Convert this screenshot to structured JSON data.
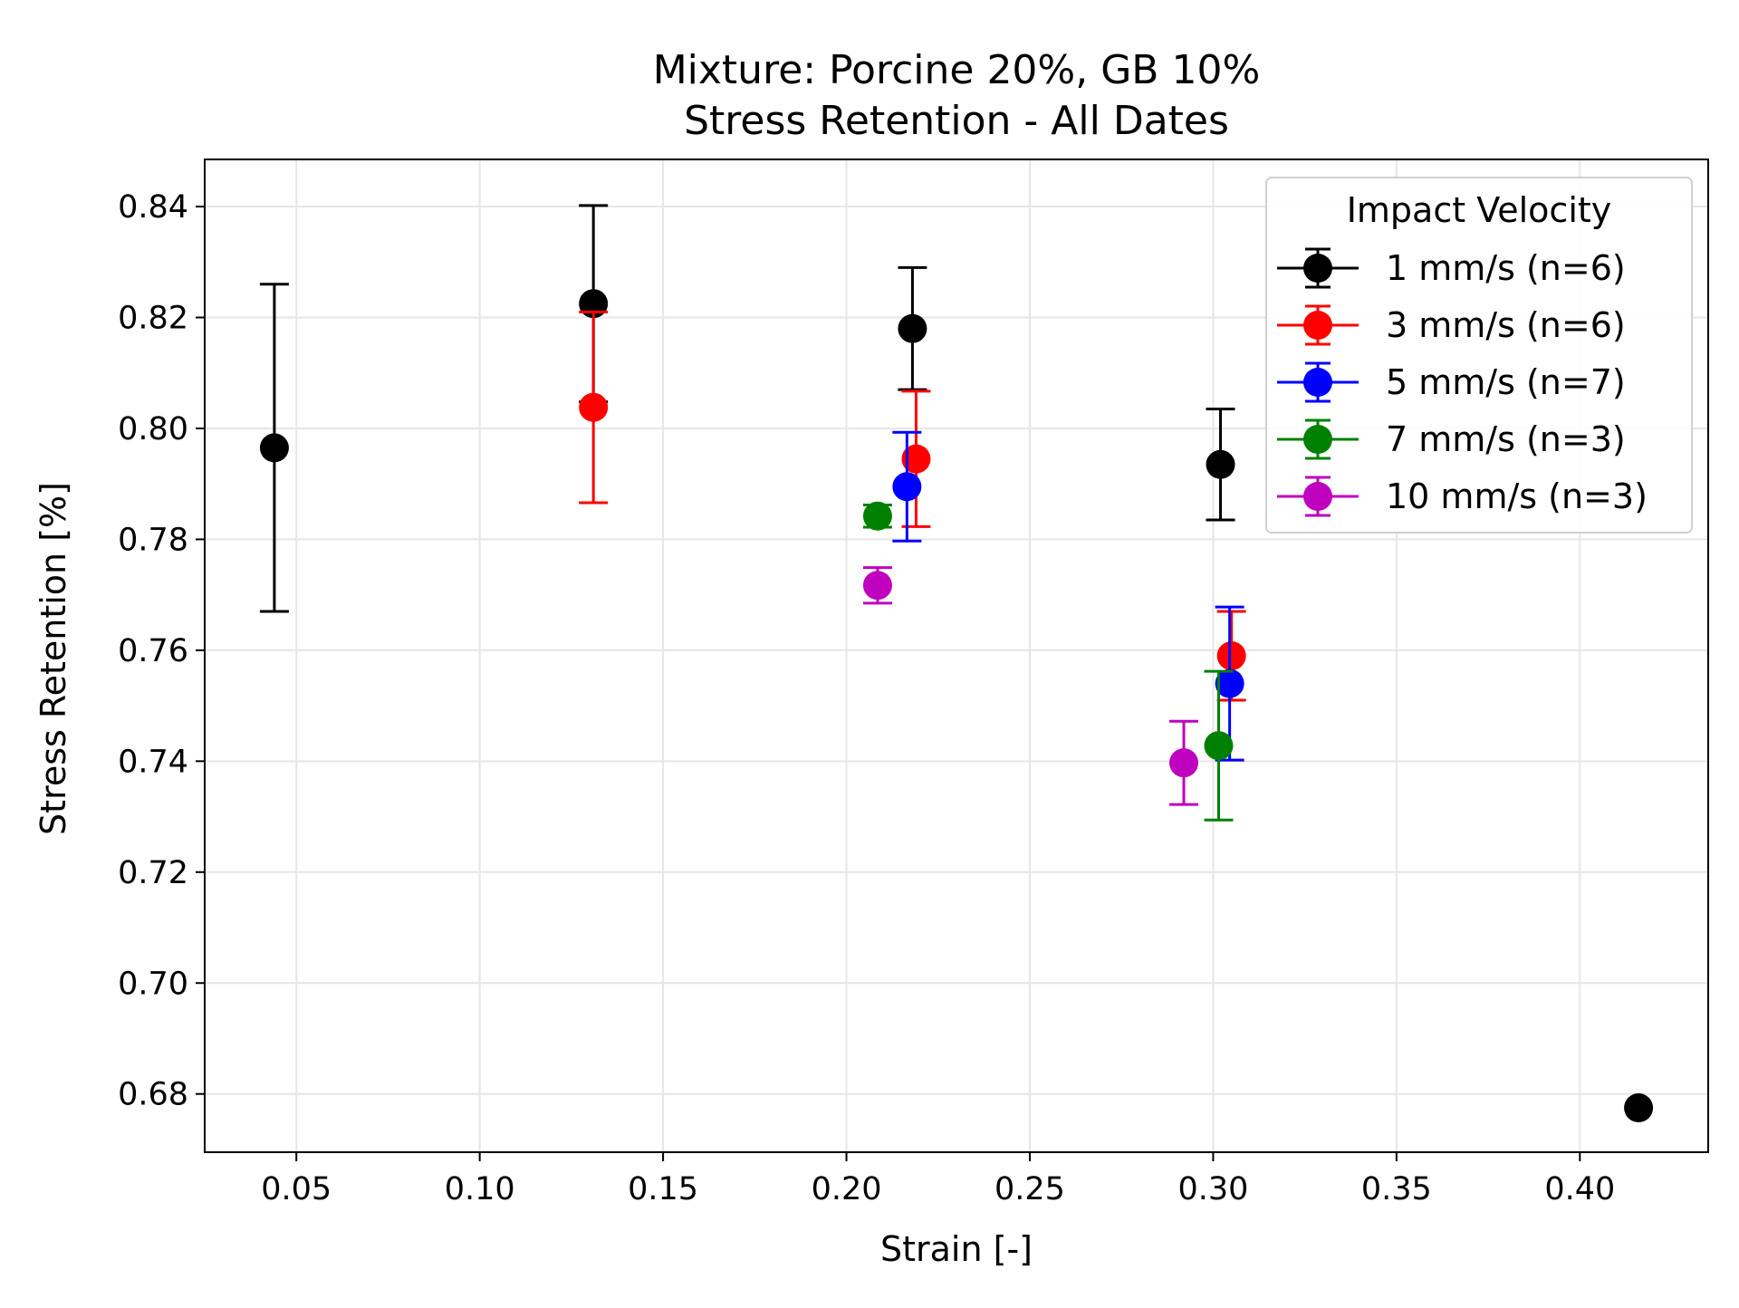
{
  "chart_data": {
    "type": "scatter",
    "title": "Mixture: Porcine 20%, GB 10%",
    "subtitle": "Stress Retention - All Dates",
    "xlabel": "Strain [-]",
    "ylabel": "Stress Retention [%]",
    "xlim": [
      0.025,
      0.435
    ],
    "ylim": [
      0.6695,
      0.8485
    ],
    "xticks": [
      0.05,
      0.1,
      0.15,
      0.2,
      0.25,
      0.3,
      0.35,
      0.4
    ],
    "xtick_labels": [
      "0.05",
      "0.10",
      "0.15",
      "0.20",
      "0.25",
      "0.30",
      "0.35",
      "0.40"
    ],
    "yticks": [
      0.68,
      0.7,
      0.72,
      0.74,
      0.76,
      0.78,
      0.8,
      0.82,
      0.84
    ],
    "ytick_labels": [
      "0.68",
      "0.70",
      "0.72",
      "0.74",
      "0.76",
      "0.78",
      "0.80",
      "0.82",
      "0.84"
    ],
    "grid": true,
    "legend": {
      "title": "Impact Velocity",
      "placement": "top-right"
    },
    "series": [
      {
        "name": "1 mm/s (n=6)",
        "color": "#000000",
        "points": [
          {
            "x": 0.044,
            "y": 0.7965,
            "err": 0.0295
          },
          {
            "x": 0.131,
            "y": 0.8225,
            "err": 0.0177
          },
          {
            "x": 0.218,
            "y": 0.818,
            "err": 0.011
          },
          {
            "x": 0.302,
            "y": 0.7935,
            "err": 0.01
          },
          {
            "x": 0.416,
            "y": 0.6775,
            "err": 0
          }
        ]
      },
      {
        "name": "3 mm/s (n=6)",
        "color": "#ff0000",
        "points": [
          {
            "x": 0.131,
            "y": 0.8038,
            "err": 0.0172
          },
          {
            "x": 0.219,
            "y": 0.7945,
            "err": 0.0122
          },
          {
            "x": 0.305,
            "y": 0.759,
            "err": 0.008
          }
        ]
      },
      {
        "name": "5 mm/s (n=7)",
        "color": "#0000ff",
        "points": [
          {
            "x": 0.2165,
            "y": 0.7895,
            "err": 0.0098
          },
          {
            "x": 0.3045,
            "y": 0.754,
            "err": 0.0138
          }
        ]
      },
      {
        "name": "7 mm/s (n=3)",
        "color": "#008000",
        "points": [
          {
            "x": 0.2085,
            "y": 0.7842,
            "err": 0.002
          },
          {
            "x": 0.3015,
            "y": 0.7428,
            "err": 0.0134
          }
        ]
      },
      {
        "name": "10 mm/s (n=3)",
        "color": "#bf00bf",
        "points": [
          {
            "x": 0.2085,
            "y": 0.7717,
            "err": 0.0032
          },
          {
            "x": 0.292,
            "y": 0.7397,
            "err": 0.0075
          }
        ]
      }
    ]
  }
}
